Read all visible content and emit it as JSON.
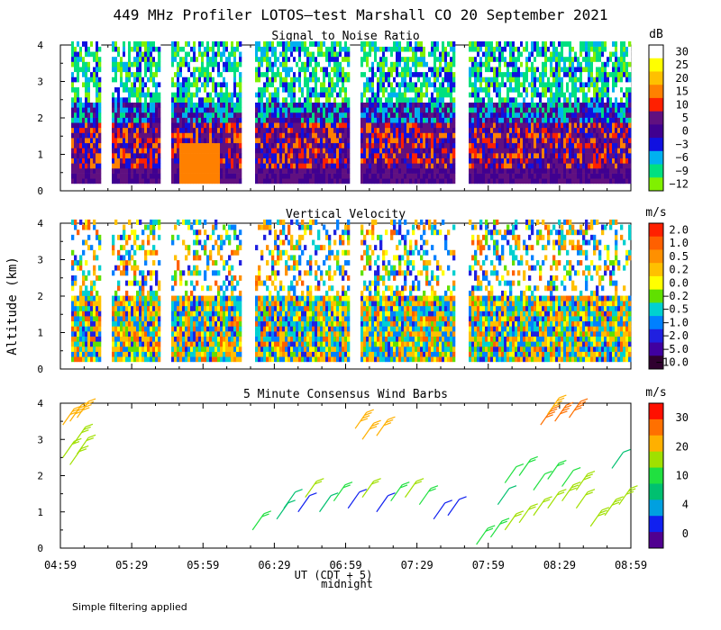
{
  "title": "449 MHz Profiler LOTOS—test Marshall CO 20 September 2021",
  "note": "Simple filtering applied",
  "y_axis_label": "Altitude (km)",
  "x_axis": {
    "label": "UT  (CDT + 5)",
    "sublabel": "midnight",
    "ticks": [
      "04:59",
      "05:29",
      "05:59",
      "06:29",
      "06:59",
      "07:29",
      "07:59",
      "08:29",
      "08:59"
    ]
  },
  "chart_data": [
    {
      "type": "heatmap",
      "title": "Signal to Noise Ratio",
      "unit": "dB",
      "ylim": [
        0,
        4
      ],
      "yticks": [
        "0",
        "1",
        "2",
        "3",
        "4"
      ],
      "xlim_hours": [
        4.983,
        8.983
      ],
      "colorbar_labels": [
        "30",
        "25",
        "20",
        "15",
        "10",
        "5",
        "0",
        "−3",
        "−6",
        "−9",
        "−12"
      ],
      "colorbar_colors": [
        "#ffffff",
        "#ffff00",
        "#ffc000",
        "#ff8000",
        "#ff2000",
        "#601080",
        "#400090",
        "#1010e0",
        "#00b0f0",
        "#00e080",
        "#80f000"
      ],
      "data_gaps_hours": [
        [
          5.25,
          5.33
        ],
        [
          5.67,
          5.75
        ],
        [
          6.25,
          6.33
        ],
        [
          7.0,
          7.08
        ],
        [
          7.75,
          7.83
        ]
      ],
      "dominant_pattern": "low SNR (0-10 dB) purple/red below 2 km, green/cyan/white above 2 km"
    },
    {
      "type": "heatmap",
      "title": "Vertical Velocity",
      "unit": "m/s",
      "ylim": [
        0,
        4
      ],
      "yticks": [
        "0",
        "1",
        "2",
        "3",
        "4"
      ],
      "colorbar_labels": [
        "2.0",
        "1.0",
        "0.5",
        "0.2",
        "0.0",
        "−0.2",
        "−0.5",
        "−1.0",
        "−2.0",
        "−5.0",
        "−10.0"
      ],
      "colorbar_colors": [
        "#ff2000",
        "#ff6000",
        "#ff9000",
        "#ffc000",
        "#ffff00",
        "#60e000",
        "#00d0d0",
        "#0080ff",
        "#2020e0",
        "#4000a0",
        "#300030"
      ]
    },
    {
      "type": "scatter",
      "title": "5 Minute Consensus Wind Barbs",
      "unit": "m/s",
      "ylim": [
        0,
        4
      ],
      "yticks": [
        "0",
        "1",
        "2",
        "3",
        "4"
      ],
      "colorbar_labels": [
        "30",
        "20",
        "10",
        "4",
        "0"
      ],
      "colorbar_colors": [
        "#ff1000",
        "#ff7000",
        "#ffb000",
        "#a0e000",
        "#20e040",
        "#00c070",
        "#00a0e0",
        "#1020f0",
        "#500090"
      ],
      "barbs": [
        {
          "t": 5.0,
          "alt": 3.4,
          "speed": 17
        },
        {
          "t": 5.05,
          "alt": 3.5,
          "speed": 18
        },
        {
          "t": 5.1,
          "alt": 3.6,
          "speed": 19
        },
        {
          "t": 5.0,
          "alt": 2.5,
          "speed": 11
        },
        {
          "t": 5.05,
          "alt": 2.3,
          "speed": 11
        },
        {
          "t": 5.1,
          "alt": 2.6,
          "speed": 12
        },
        {
          "t": 5.08,
          "alt": 2.9,
          "speed": 14
        },
        {
          "t": 6.33,
          "alt": 0.5,
          "speed": 9
        },
        {
          "t": 6.5,
          "alt": 0.8,
          "speed": 5
        },
        {
          "t": 6.55,
          "alt": 1.1,
          "speed": 4
        },
        {
          "t": 6.65,
          "alt": 1.0,
          "speed": 3
        },
        {
          "t": 6.7,
          "alt": 1.4,
          "speed": 10
        },
        {
          "t": 6.8,
          "alt": 1.0,
          "speed": 4
        },
        {
          "t": 6.9,
          "alt": 1.3,
          "speed": 9
        },
        {
          "t": 7.0,
          "alt": 1.1,
          "speed": 3
        },
        {
          "t": 7.1,
          "alt": 1.4,
          "speed": 10
        },
        {
          "t": 7.2,
          "alt": 1.0,
          "speed": 3
        },
        {
          "t": 7.3,
          "alt": 1.3,
          "speed": 9
        },
        {
          "t": 7.4,
          "alt": 1.4,
          "speed": 10
        },
        {
          "t": 7.5,
          "alt": 1.2,
          "speed": 8
        },
        {
          "t": 7.6,
          "alt": 0.8,
          "speed": 2
        },
        {
          "t": 7.7,
          "alt": 0.9,
          "speed": 3
        },
        {
          "t": 7.05,
          "alt": 3.3,
          "speed": 18
        },
        {
          "t": 7.1,
          "alt": 3.0,
          "speed": 16
        },
        {
          "t": 7.2,
          "alt": 3.1,
          "speed": 17
        },
        {
          "t": 7.9,
          "alt": 0.1,
          "speed": 8
        },
        {
          "t": 8.0,
          "alt": 0.3,
          "speed": 9
        },
        {
          "t": 8.1,
          "alt": 0.5,
          "speed": 10
        },
        {
          "t": 8.2,
          "alt": 0.7,
          "speed": 11
        },
        {
          "t": 8.3,
          "alt": 0.9,
          "speed": 12
        },
        {
          "t": 8.4,
          "alt": 1.1,
          "speed": 12
        },
        {
          "t": 8.5,
          "alt": 1.3,
          "speed": 13
        },
        {
          "t": 8.6,
          "alt": 1.6,
          "speed": 14
        },
        {
          "t": 8.7,
          "alt": 0.6,
          "speed": 13
        },
        {
          "t": 8.8,
          "alt": 0.9,
          "speed": 13
        },
        {
          "t": 8.9,
          "alt": 1.2,
          "speed": 14
        },
        {
          "t": 8.05,
          "alt": 1.2,
          "speed": 6
        },
        {
          "t": 8.1,
          "alt": 1.8,
          "speed": 7
        },
        {
          "t": 8.2,
          "alt": 2.0,
          "speed": 8
        },
        {
          "t": 8.3,
          "alt": 1.6,
          "speed": 7
        },
        {
          "t": 8.4,
          "alt": 1.9,
          "speed": 8
        },
        {
          "t": 8.5,
          "alt": 1.7,
          "speed": 7
        },
        {
          "t": 8.6,
          "alt": 1.1,
          "speed": 10
        },
        {
          "t": 8.85,
          "alt": 2.2,
          "speed": 5
        },
        {
          "t": 8.35,
          "alt": 3.4,
          "speed": 22
        },
        {
          "t": 8.45,
          "alt": 3.5,
          "speed": 22
        },
        {
          "t": 8.55,
          "alt": 3.6,
          "speed": 23
        },
        {
          "t": 8.4,
          "alt": 3.7,
          "speed": 21
        }
      ]
    }
  ]
}
